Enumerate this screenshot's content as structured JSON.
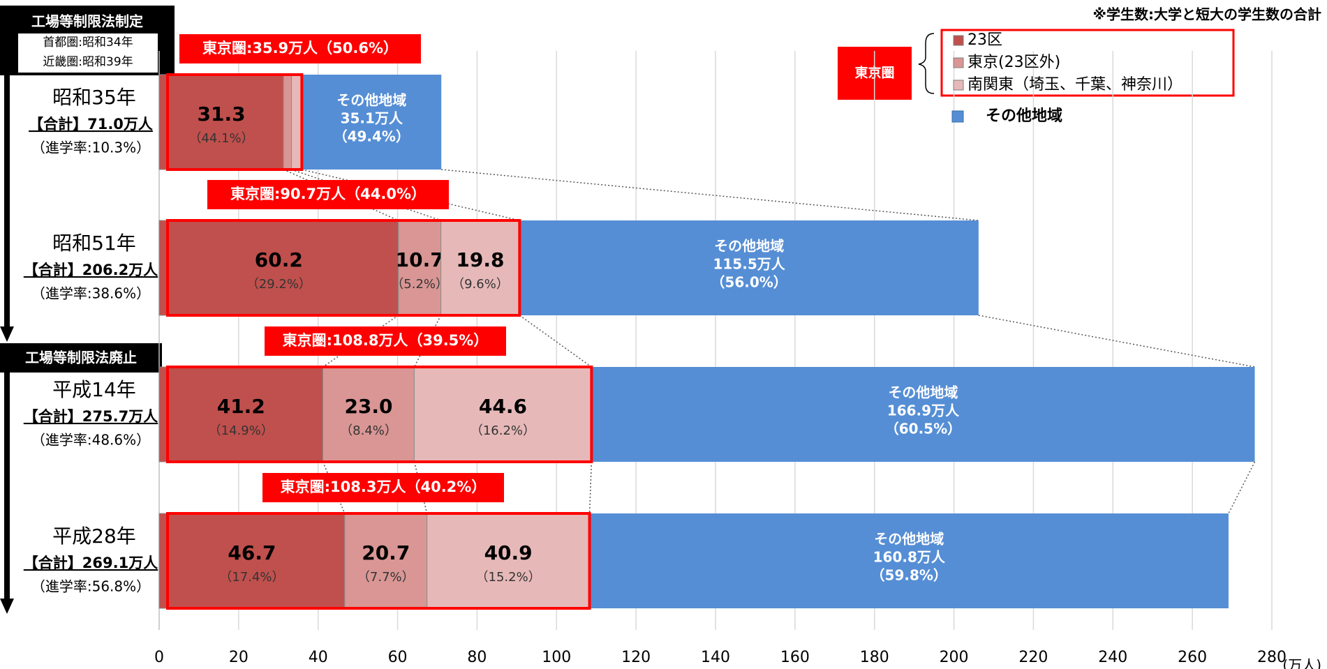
{
  "chart_data": {
    "type": "bar",
    "orientation": "horizontal",
    "stacked": true,
    "note": "※学生数:大学と短大の学生数の合計",
    "unit": "(万人)",
    "categories": [
      "昭和35年",
      "昭和51年",
      "平成14年",
      "平成28年"
    ],
    "totals": [
      "【合計】71.0万人",
      "【合計】206.2万人",
      "【合計】275.7万人",
      "【合計】269.1万人"
    ],
    "rates": [
      "（進学率:10.3%）",
      "（進学率:38.6%）",
      "（進学率:48.6%）",
      "（進学率:56.8%）"
    ],
    "area_labels": [
      "東京圏:35.9万人（50.6%）",
      "東京圏:90.7万人（44.0%）",
      "東京圏:108.8万人（39.5%）",
      "東京圏:108.3万人（40.2%）"
    ],
    "series": [
      {
        "name": "23区",
        "color": "#c0504d",
        "values": [
          31.3,
          60.2,
          41.2,
          46.7
        ],
        "value_labels": [
          "31.3",
          "60.2",
          "41.2",
          "46.7"
        ],
        "share_labels": [
          "（44.1%）",
          "（29.2%）",
          "（14.9%）",
          "（17.4%）"
        ]
      },
      {
        "name": "東京(23区外)",
        "color": "#d99694",
        "values": [
          2.0,
          10.7,
          23.0,
          20.7
        ],
        "value_labels": [
          null,
          "10.7",
          "23.0",
          "20.7"
        ],
        "share_labels": [
          null,
          "（5.2%）",
          "（8.4%）",
          "（7.7%）"
        ]
      },
      {
        "name": "南関東（埼玉、千葉、神奈川）",
        "color": "#e6b9b8",
        "values": [
          2.6,
          19.8,
          44.6,
          40.9
        ],
        "value_labels": [
          null,
          "19.8",
          "44.6",
          "40.9"
        ],
        "share_labels": [
          null,
          "（9.6%）",
          "（16.2%）",
          "（15.2%）"
        ]
      },
      {
        "name": "その他地域",
        "color": "#558ed5",
        "values": [
          35.1,
          115.5,
          166.9,
          160.8
        ],
        "value_labels": [
          "35.1万人",
          "115.5万人",
          "166.9万人",
          "160.8万人"
        ],
        "share_labels": [
          "（49.4%）",
          "（56.0%）",
          "（60.5%）",
          "（59.8%）"
        ]
      }
    ],
    "legend_group": "東京圏",
    "annotations": [
      "工場等制限法制定",
      "首都圏:昭和34年",
      "近畿圏:昭和39年",
      "工場等制限法廃止"
    ],
    "xlim": [
      0,
      280
    ],
    "xticks": [
      0,
      20,
      40,
      60,
      80,
      100,
      120,
      140,
      160,
      180,
      200,
      220,
      240,
      260,
      280
    ],
    "grid": true
  }
}
